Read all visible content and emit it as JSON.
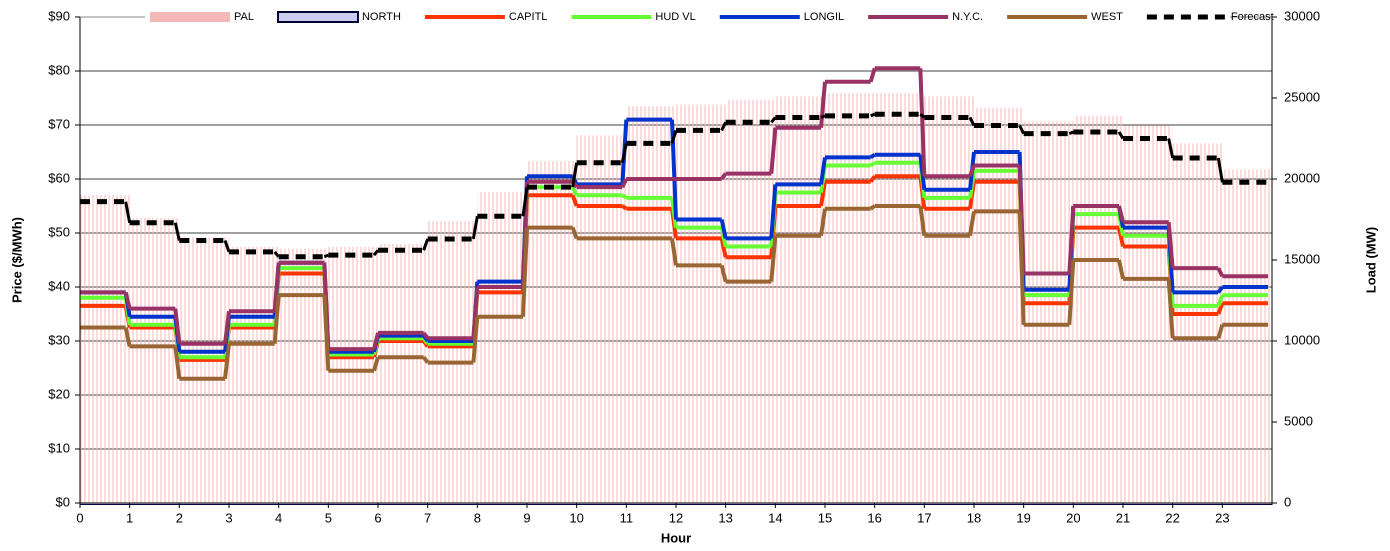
{
  "chart_data": {
    "type": "step",
    "xlabel": "Hour",
    "ylabel": "Price ($/MWh)",
    "y2label": "Load (MW)",
    "xlim": [
      0,
      24
    ],
    "xticks": [
      0,
      1,
      2,
      3,
      4,
      5,
      6,
      7,
      8,
      9,
      10,
      11,
      12,
      13,
      14,
      15,
      16,
      17,
      18,
      19,
      20,
      21,
      22,
      23
    ],
    "ylim": [
      0,
      90
    ],
    "yticks": [
      {
        "value": 0,
        "label": "$0"
      },
      {
        "value": 10,
        "label": "$10"
      },
      {
        "value": 20,
        "label": "$20"
      },
      {
        "value": 30,
        "label": "$30"
      },
      {
        "value": 40,
        "label": "$40"
      },
      {
        "value": 50,
        "label": "$50"
      },
      {
        "value": 60,
        "label": "$60"
      },
      {
        "value": 70,
        "label": "$70"
      },
      {
        "value": 80,
        "label": "$80"
      },
      {
        "value": 90,
        "label": "$90"
      }
    ],
    "y2lim": [
      0,
      30000
    ],
    "y2ticks": [
      0,
      5000,
      10000,
      15000,
      20000,
      25000,
      30000
    ],
    "grid": true,
    "legend": "top",
    "series": [
      {
        "name": "PAL",
        "color": "#f4b8b8",
        "style": "bar",
        "axis": "y2",
        "values": [
          19000,
          17600,
          16400,
          15800,
          15700,
          15800,
          16000,
          17400,
          19200,
          21100,
          22700,
          24500,
          24600,
          24900,
          25100,
          25300,
          25300,
          25100,
          24400,
          23600,
          23900,
          23300,
          22200,
          20600
        ]
      },
      {
        "name": "NORTH",
        "color": "#ccccee",
        "style": "bar",
        "values": [
          0,
          0,
          0,
          0,
          0,
          0,
          0,
          0,
          0,
          0,
          0,
          0,
          0,
          0,
          0,
          0,
          0,
          0,
          0,
          0,
          0,
          0,
          0,
          0
        ]
      },
      {
        "name": "CAPITL",
        "color": "#ff3300",
        "style": "step",
        "values": [
          36.5,
          32.5,
          26.5,
          32.5,
          42.5,
          27,
          30,
          29,
          39,
          57,
          55,
          54.5,
          49,
          45.5,
          55,
          59.5,
          60.5,
          54.5,
          59.5,
          37,
          51,
          47.5,
          35,
          37
        ]
      },
      {
        "name": "HUD VL",
        "color": "#66ff33",
        "style": "step",
        "values": [
          38,
          33,
          27,
          33,
          43.5,
          27.5,
          30.5,
          29.5,
          40,
          58.5,
          57,
          56.5,
          51,
          47.5,
          57.5,
          62.5,
          63,
          56.5,
          61.5,
          38.5,
          53.5,
          49.5,
          36.5,
          38.5
        ]
      },
      {
        "name": "LONGIL",
        "color": "#0033cc",
        "style": "step",
        "values": [
          39,
          34.5,
          28,
          34.5,
          44.5,
          28,
          31,
          30,
          41,
          60.5,
          59,
          71,
          52.5,
          49,
          59,
          64,
          64.5,
          58,
          65,
          39.5,
          55,
          51,
          39,
          40
        ]
      },
      {
        "name": "N.Y.C.",
        "color": "#993366",
        "style": "step",
        "values": [
          39,
          36,
          29.5,
          35.5,
          44.5,
          28.5,
          31.5,
          30.5,
          40,
          59.5,
          58.5,
          60,
          60,
          61,
          69.5,
          78,
          80.5,
          60.5,
          62.5,
          42.5,
          55,
          52,
          43.5,
          42
        ]
      },
      {
        "name": "WEST",
        "color": "#996633",
        "style": "step",
        "values": [
          32.5,
          29,
          23,
          29.5,
          38.5,
          24.5,
          27,
          26,
          34.5,
          51,
          49,
          49,
          44,
          41,
          49.5,
          54.5,
          55,
          49.5,
          54,
          33,
          45,
          41.5,
          30.5,
          33
        ]
      },
      {
        "name": "Forecast",
        "color": "#000000",
        "style": "dashed",
        "axis": "y2",
        "values": [
          18600,
          17300,
          16200,
          15500,
          15200,
          15300,
          15600,
          16300,
          17700,
          19500,
          21000,
          22200,
          23000,
          23500,
          23800,
          23900,
          24000,
          23800,
          23300,
          22800,
          22900,
          22500,
          21300,
          19800
        ]
      }
    ]
  }
}
